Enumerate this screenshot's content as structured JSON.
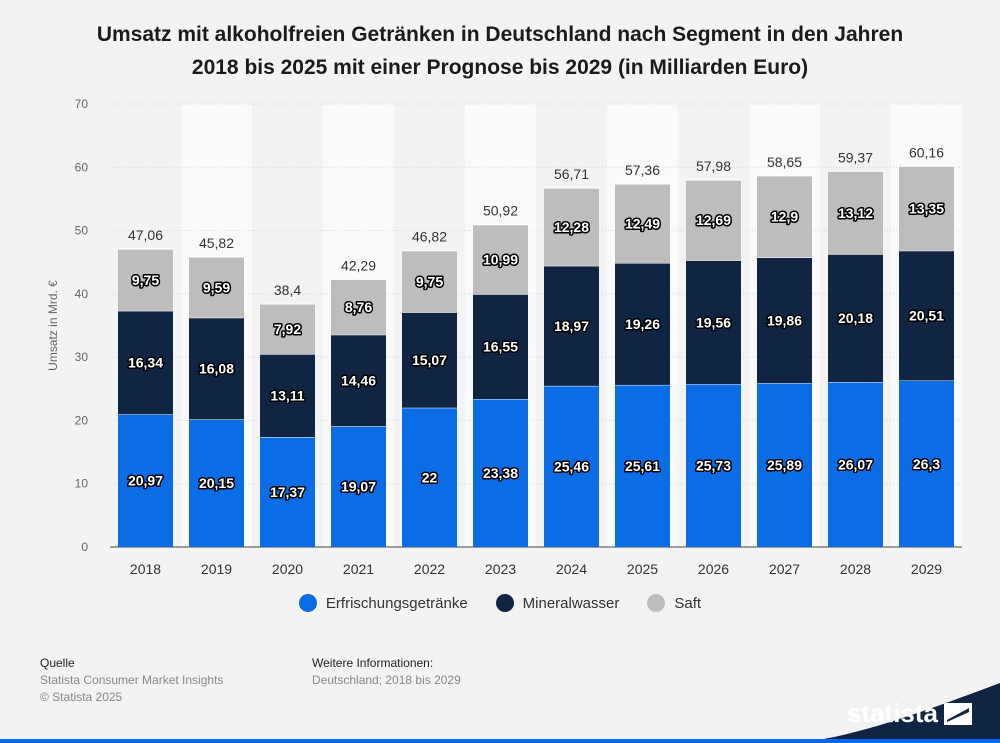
{
  "title_line1": "Umsatz mit alkoholfreien Getränken in Deutschland nach Segment in den Jahren",
  "title_line2": "2018 bis 2025 mit einer Prognose bis 2029 (in Milliarden Euro)",
  "chart_data": {
    "type": "bar",
    "stacked": true,
    "categories": [
      "2018",
      "2019",
      "2020",
      "2021",
      "2022",
      "2023",
      "2024",
      "2025",
      "2026",
      "2027",
      "2028",
      "2029"
    ],
    "series": [
      {
        "name": "Erfrischungsgetränke",
        "color": "#0b6de6",
        "values": [
          20.97,
          20.15,
          17.37,
          19.07,
          22,
          23.38,
          25.46,
          25.61,
          25.73,
          25.89,
          26.07,
          26.3
        ],
        "labels": [
          "20,97",
          "20,15",
          "17,37",
          "19,07",
          "22",
          "23,38",
          "25,46",
          "25,61",
          "25,73",
          "25,89",
          "26,07",
          "26,3"
        ]
      },
      {
        "name": "Mineralwasser",
        "color": "#0f2541",
        "values": [
          16.34,
          16.08,
          13.11,
          14.46,
          15.07,
          16.55,
          18.97,
          19.26,
          19.56,
          19.86,
          20.18,
          20.51
        ],
        "labels": [
          "16,34",
          "16,08",
          "13,11",
          "14,46",
          "15,07",
          "16,55",
          "18,97",
          "19,26",
          "19,56",
          "19,86",
          "20,18",
          "20,51"
        ]
      },
      {
        "name": "Saft",
        "color": "#bdbdbd",
        "values": [
          9.75,
          9.59,
          7.92,
          8.76,
          9.75,
          10.99,
          12.28,
          12.49,
          12.69,
          12.9,
          13.12,
          13.35
        ],
        "labels": [
          "9,75",
          "9,59",
          "7,92",
          "8,76",
          "9,75",
          "10,99",
          "12,28",
          "12,49",
          "12,69",
          "12,9",
          "13,12",
          "13,35"
        ]
      }
    ],
    "totals": [
      "47,06",
      "45,82",
      "38,4",
      "42,29",
      "46,82",
      "50,92",
      "56,71",
      "57,36",
      "57,98",
      "58,65",
      "59,37",
      "60,16"
    ],
    "ylabel": "Umsatz in Mrd. €",
    "ylim": [
      0,
      70
    ],
    "yticks": [
      0,
      10,
      20,
      30,
      40,
      50,
      60,
      70
    ],
    "grid": true,
    "legend_position": "bottom"
  },
  "source": {
    "heading": "Quelle",
    "line1": "Statista Consumer Market Insights",
    "line2": "© Statista 2025"
  },
  "info": {
    "heading": "Weitere Informationen:",
    "line1": "Deutschland; 2018 bis 2029"
  },
  "logo": "statista"
}
